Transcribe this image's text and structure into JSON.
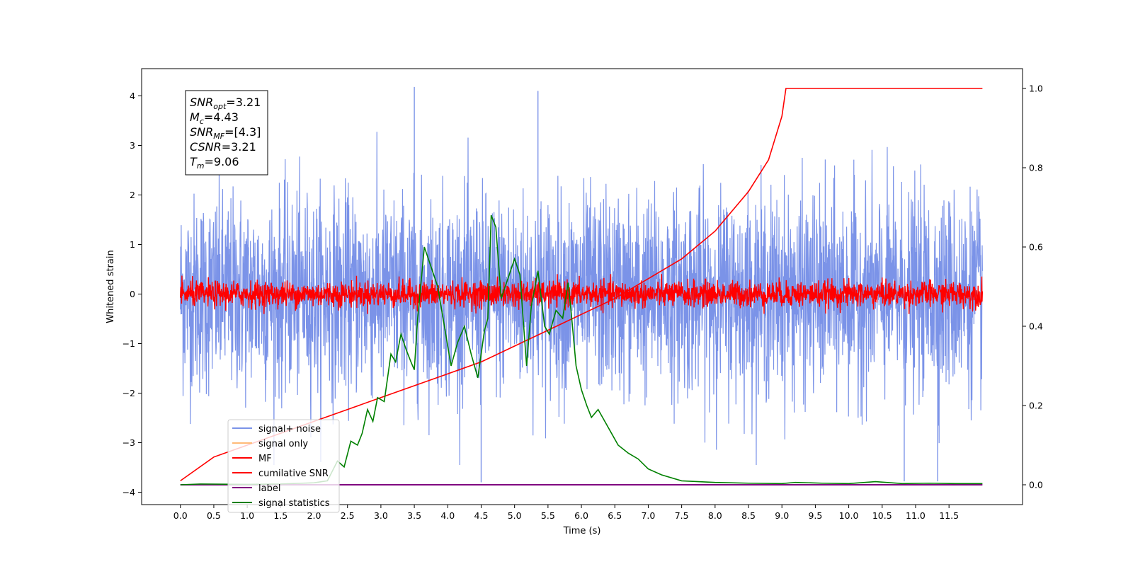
{
  "chart_data": {
    "type": "line",
    "xlabel": "Time (s)",
    "ylabel": "Whitened strain",
    "xlim": [
      -0.58,
      12.6
    ],
    "ylim_left": [
      -4.25,
      4.55
    ],
    "ylim_right": [
      -0.05,
      1.05
    ],
    "x_ticks": [
      "0.0",
      "0.5",
      "1.0",
      "1.5",
      "2.0",
      "2.5",
      "3.0",
      "3.5",
      "4.0",
      "4.5",
      "5.0",
      "5.5",
      "6.0",
      "6.5",
      "7.0",
      "7.5",
      "8.0",
      "8.5",
      "9.0",
      "9.5",
      "10.0",
      "10.5",
      "11.0",
      "11.5"
    ],
    "y_ticks_left": [
      "4",
      "3",
      "2",
      "1",
      "0",
      "−1",
      "−2",
      "−3",
      "−4"
    ],
    "y_ticks_right": [
      "1.0",
      "0.8",
      "0.6",
      "0.4",
      "0.2",
      "0.0"
    ],
    "grid": false,
    "legend_location": "lower left",
    "legend": [
      {
        "label": "signal+ noise",
        "color": "#7b93e8"
      },
      {
        "label": "signal only",
        "color": "#ffbb78"
      },
      {
        "label": "MF",
        "color": "#ff0000"
      },
      {
        "label": "cumilative SNR",
        "color": "#ff0000"
      },
      {
        "label": "label",
        "color": "#800080"
      },
      {
        "label": "signal statistics",
        "color": "#008000"
      }
    ],
    "annotation_lines": [
      {
        "var": "SNR",
        "sub": "opt",
        "value": "=3.21"
      },
      {
        "var": "M",
        "sub": "c",
        "value": "=4.43"
      },
      {
        "var": "SNR",
        "sub": "MF",
        "value": "=[4.3]"
      },
      {
        "var": "CSNR",
        "sub": "",
        "value": "=3.21"
      },
      {
        "var": "T",
        "sub": "m",
        "value": "=9.06"
      }
    ],
    "series": [
      {
        "name": "signal+ noise",
        "axis": "left",
        "color": "#7b93e8",
        "x_range": [
          0.0,
          12.0
        ],
        "approx_spread": [
          -3.0,
          3.0
        ],
        "notable_peaks": [
          {
            "x": 3.5,
            "y": 4.18
          },
          {
            "x": 5.35,
            "y": 4.1
          },
          {
            "x": 4.5,
            "y": -3.8
          },
          {
            "x": 10.83,
            "y": -3.78
          },
          {
            "x": 11.33,
            "y": -3.78
          }
        ]
      },
      {
        "name": "MF",
        "axis": "left",
        "color": "#ff0000",
        "x_range": [
          0.0,
          12.0
        ],
        "approx_spread": [
          -0.35,
          0.35
        ]
      },
      {
        "name": "cumilative SNR",
        "axis": "right",
        "color": "#ff0000",
        "x": [
          0.0,
          0.5,
          1.0,
          1.5,
          2.0,
          2.5,
          3.0,
          3.5,
          4.0,
          4.5,
          5.0,
          5.5,
          6.0,
          6.5,
          7.0,
          7.5,
          8.0,
          8.5,
          8.8,
          9.0,
          9.06,
          12.0
        ],
        "values": [
          0.01,
          0.07,
          0.1,
          0.13,
          0.16,
          0.19,
          0.22,
          0.25,
          0.28,
          0.31,
          0.35,
          0.39,
          0.43,
          0.47,
          0.52,
          0.57,
          0.64,
          0.74,
          0.82,
          0.93,
          1.0,
          1.0
        ]
      },
      {
        "name": "label",
        "axis": "right",
        "color": "#800080",
        "x": [
          0.0,
          12.0
        ],
        "values": [
          0.0,
          0.0
        ]
      },
      {
        "name": "signal statistics",
        "axis": "right",
        "color": "#008000",
        "x": [
          0.0,
          0.3,
          1.0,
          1.5,
          2.0,
          2.2,
          2.35,
          2.45,
          2.55,
          2.65,
          2.72,
          2.8,
          2.88,
          2.95,
          3.05,
          3.15,
          3.22,
          3.3,
          3.38,
          3.45,
          3.5,
          3.55,
          3.65,
          3.75,
          3.85,
          3.95,
          4.05,
          4.1,
          4.15,
          4.25,
          4.35,
          4.45,
          4.55,
          4.6,
          4.65,
          4.72,
          4.8,
          4.9,
          5.0,
          5.08,
          5.18,
          5.25,
          5.35,
          5.45,
          5.52,
          5.62,
          5.72,
          5.8,
          5.85,
          5.92,
          6.0,
          6.08,
          6.15,
          6.25,
          6.35,
          6.45,
          6.55,
          6.7,
          6.85,
          7.0,
          7.2,
          7.5,
          8.0,
          8.5,
          9.0,
          9.2,
          9.6,
          10.0,
          10.4,
          10.8,
          11.2,
          11.6,
          12.0
        ],
        "values": [
          0.0,
          0.002,
          0.001,
          0.002,
          0.005,
          0.01,
          0.06,
          0.045,
          0.11,
          0.1,
          0.13,
          0.19,
          0.16,
          0.22,
          0.21,
          0.33,
          0.31,
          0.38,
          0.34,
          0.31,
          0.29,
          0.42,
          0.6,
          0.55,
          0.5,
          0.4,
          0.3,
          0.33,
          0.36,
          0.4,
          0.33,
          0.27,
          0.39,
          0.42,
          0.68,
          0.65,
          0.47,
          0.52,
          0.57,
          0.53,
          0.3,
          0.45,
          0.54,
          0.4,
          0.38,
          0.44,
          0.42,
          0.51,
          0.43,
          0.3,
          0.24,
          0.2,
          0.17,
          0.19,
          0.16,
          0.13,
          0.1,
          0.08,
          0.065,
          0.04,
          0.025,
          0.01,
          0.006,
          0.004,
          0.003,
          0.006,
          0.004,
          0.003,
          0.008,
          0.003,
          0.004,
          0.003,
          0.003
        ]
      }
    ]
  }
}
